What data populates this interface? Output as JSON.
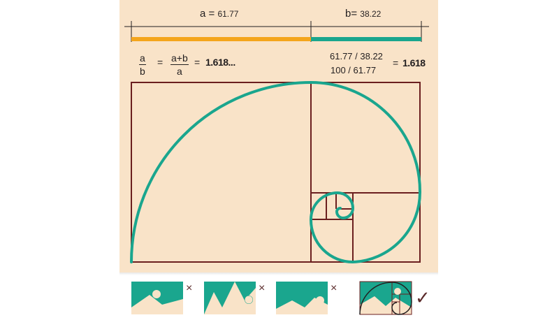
{
  "segments": {
    "a_letter": "a",
    "a_equals": "=",
    "a_value": "61.77",
    "b_letter": "b",
    "b_equals": "=",
    "b_value": "38.22",
    "a_color": "#f4a51c",
    "b_color": "#1aa68e"
  },
  "formula": {
    "frac1_top": "a",
    "frac1_bottom": "b",
    "equals1": "=",
    "frac2_top": "a+b",
    "frac2_bottom": "a",
    "equals2": "=",
    "result": "1.618..."
  },
  "calculation": {
    "line1": "61.77 / 38.22",
    "line2": "100 / 61.77",
    "equals": "=",
    "result": "1.618"
  },
  "colors": {
    "background": "#f9e3c8",
    "rectangle_stroke": "#6b1f1f",
    "spiral": "#1aa68e",
    "thumb_teal": "#1aa68e",
    "thumb_cream": "#f9e3c8"
  },
  "examples": [
    {
      "icon": "landscape-sun-left-thumbnail",
      "verdict": "×",
      "verdict_meaning": "cross"
    },
    {
      "icon": "landscape-peaks-thumbnail",
      "verdict": "×",
      "verdict_meaning": "cross"
    },
    {
      "icon": "landscape-sun-right-thumbnail",
      "verdict": "×",
      "verdict_meaning": "cross"
    },
    {
      "icon": "golden-spiral-composition-thumbnail",
      "verdict": "✓",
      "verdict_meaning": "check"
    }
  ]
}
